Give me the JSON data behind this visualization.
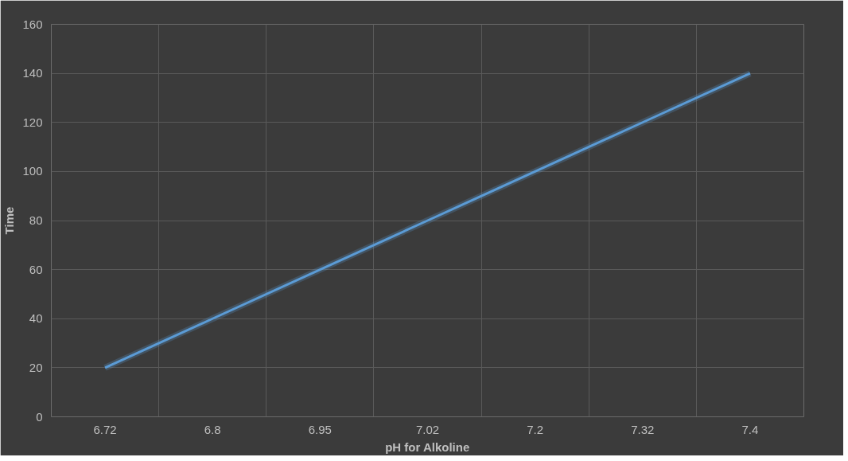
{
  "chart_data": {
    "type": "line",
    "xlabel": "pH for Alkoline",
    "ylabel": "Time",
    "categories": [
      "6.72",
      "6.8",
      "6.95",
      "7.02",
      "7.2",
      "7.32",
      "7.4"
    ],
    "values": [
      20,
      40,
      60,
      80,
      100,
      120,
      140
    ],
    "color": "#5b9bd5",
    "ylim": [
      0,
      160
    ],
    "yticks": [
      0,
      20,
      40,
      60,
      80,
      100,
      120,
      140,
      160
    ],
    "grid": true,
    "marker": "none",
    "line_style": "solid"
  }
}
